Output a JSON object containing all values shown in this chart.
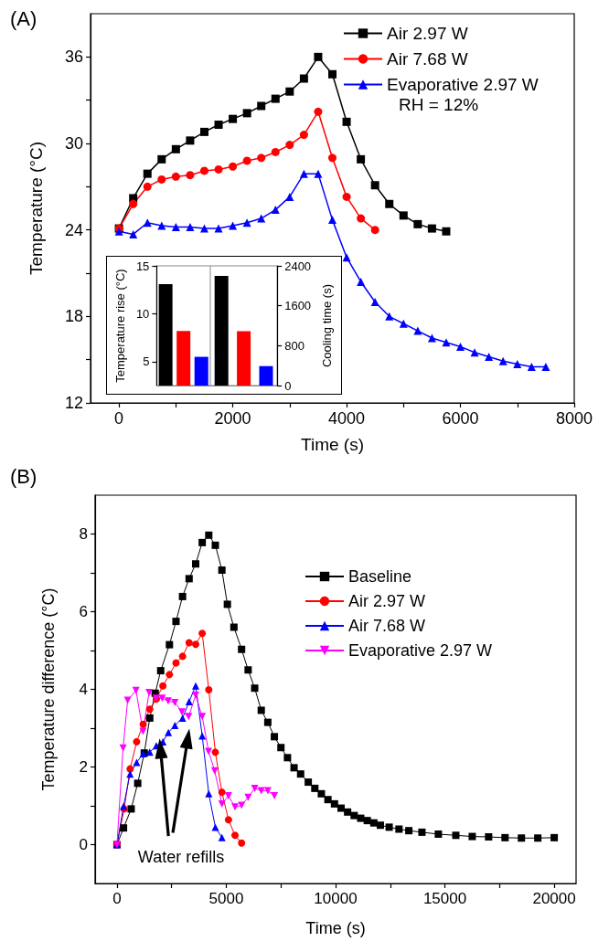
{
  "chart_data": [
    {
      "type": "line",
      "title": "(A)",
      "xlabel": "Time (s)",
      "ylabel": "Temperature (°C)",
      "xlim": [
        -500,
        8000
      ],
      "xticks": [
        0,
        {
          "value": 1000,
          "label": null
        },
        2000,
        {
          "value": 3000,
          "label": null
        },
        4000,
        {
          "value": 5000,
          "label": null
        },
        6000,
        {
          "value": 7000,
          "label": null
        },
        8000
      ],
      "ylim": [
        12,
        39
      ],
      "yticks": [
        12,
        {
          "value": 15,
          "label": null
        },
        18,
        {
          "value": 21,
          "label": null
        },
        24,
        {
          "value": 27,
          "label": null
        },
        30,
        {
          "value": 33,
          "label": null
        },
        36
      ],
      "legend": "top right",
      "annotations": [
        "RH = 12%"
      ],
      "series": [
        {
          "name": "Air 2.97 W",
          "color": "#000000",
          "marker": "square",
          "x": [
            0,
            250,
            500,
            750,
            1000,
            1250,
            1500,
            1750,
            2000,
            2250,
            2500,
            2750,
            3000,
            3250,
            3500,
            3750,
            4000,
            4250,
            4500,
            4750,
            5000,
            5250,
            5500,
            5750
          ],
          "values": [
            24.1,
            26.2,
            27.9,
            28.9,
            29.6,
            30.2,
            30.8,
            31.3,
            31.7,
            32.1,
            32.6,
            33.1,
            33.6,
            34.5,
            36.0,
            34.8,
            31.5,
            28.9,
            27.1,
            25.8,
            25.0,
            24.4,
            24.1,
            23.9
          ]
        },
        {
          "name": "Air 7.68 W",
          "color": "#ff0000",
          "marker": "circle",
          "x": [
            0,
            250,
            500,
            750,
            1000,
            1250,
            1500,
            1750,
            2000,
            2250,
            2500,
            2750,
            3000,
            3250,
            3500,
            3750,
            4000,
            4250,
            4500
          ],
          "values": [
            24.1,
            25.8,
            27.0,
            27.5,
            27.7,
            27.8,
            28.1,
            28.2,
            28.4,
            28.8,
            29.0,
            29.4,
            29.9,
            30.6,
            32.2,
            29.0,
            26.3,
            24.8,
            24.0
          ]
        },
        {
          "name": "Evaporative 2.97 W",
          "color": "#0000ff",
          "marker": "triangle",
          "x": [
            0,
            250,
            500,
            750,
            1000,
            1250,
            1500,
            1750,
            2000,
            2250,
            2500,
            2750,
            3000,
            3250,
            3500,
            3750,
            4000,
            4250,
            4500,
            4750,
            5000,
            5250,
            5500,
            5750,
            6000,
            6250,
            6500,
            6750,
            7000,
            7250,
            7500
          ],
          "values": [
            23.9,
            23.7,
            24.5,
            24.3,
            24.2,
            24.2,
            24.1,
            24.1,
            24.3,
            24.5,
            24.8,
            25.4,
            26.3,
            27.9,
            27.9,
            24.7,
            22.1,
            20.4,
            19.0,
            18.0,
            17.5,
            17.0,
            16.5,
            16.2,
            15.9,
            15.5,
            15.2,
            14.9,
            14.7,
            14.5,
            14.5
          ]
        }
      ]
    },
    {
      "type": "bar",
      "ylabel": "Temperature rise (°C)",
      "categories": [
        null,
        null,
        null
      ],
      "values": [
        13.1,
        8.2,
        5.5
      ],
      "colors": [
        "#000000",
        "#ff0000",
        "#0000ff"
      ],
      "ylim": [
        2.5,
        15
      ],
      "yticks": [
        5,
        10,
        15
      ]
    },
    {
      "type": "bar",
      "ylabel": "Cooling time (s)",
      "categories": [
        null,
        null,
        null
      ],
      "values": [
        2200,
        1090,
        390
      ],
      "colors": [
        "#000000",
        "#ff0000",
        "#0000ff"
      ],
      "ylim": [
        0,
        2400
      ],
      "yticks": [
        0,
        800,
        1600,
        2400
      ]
    },
    {
      "type": "line",
      "title": "(B)",
      "xlabel": "Time (s)",
      "ylabel": "Temperature difference (°C)",
      "xlim": [
        -1000,
        21000
      ],
      "xticks": [
        0,
        {
          "value": 2500,
          "label": null
        },
        5000,
        {
          "value": 7500,
          "label": null
        },
        10000,
        {
          "value": 12500,
          "label": null
        },
        15000,
        {
          "value": 17500,
          "label": null
        },
        20000
      ],
      "ylim": [
        -1,
        9
      ],
      "yticks": [
        0,
        {
          "value": 1,
          "label": null
        },
        2,
        {
          "value": 3,
          "label": null
        },
        4,
        {
          "value": 5,
          "label": null
        },
        6,
        {
          "value": 7,
          "label": null
        },
        8
      ],
      "legend": "right",
      "annotations": [
        "Water refills"
      ],
      "series": [
        {
          "name": "Baseline",
          "color": "#000000",
          "marker": "square",
          "x": [
            0,
            300,
            650,
            950,
            1250,
            1500,
            1750,
            2000,
            2400,
            2700,
            3000,
            3300,
            3600,
            3900,
            4200,
            4500,
            4800,
            5050,
            5350,
            5700,
            6000,
            6300,
            6600,
            6900,
            7200,
            7500,
            7800,
            8100,
            8400,
            8750,
            9050,
            9350,
            9650,
            9950,
            10250,
            10550,
            10850,
            11150,
            11450,
            11750,
            12050,
            12450,
            12900,
            13350,
            13950,
            14700,
            15500,
            16250,
            17000,
            17750,
            18500,
            19250,
            20000
          ],
          "values": [
            0,
            0.43,
            0.92,
            1.58,
            2.36,
            3.26,
            3.9,
            4.48,
            5.15,
            5.75,
            6.39,
            6.85,
            7.23,
            7.78,
            7.97,
            7.71,
            7.07,
            6.19,
            5.6,
            5.03,
            4.5,
            4.03,
            3.46,
            3.15,
            2.78,
            2.5,
            2.24,
            1.98,
            1.82,
            1.61,
            1.45,
            1.31,
            1.16,
            1.05,
            0.94,
            0.84,
            0.75,
            0.68,
            0.62,
            0.56,
            0.5,
            0.45,
            0.4,
            0.36,
            0.32,
            0.27,
            0.24,
            0.21,
            0.2,
            0.18,
            0.17,
            0.17,
            0.18
          ]
        },
        {
          "name": "Air 2.97 W",
          "color": "#ff0000",
          "marker": "circle",
          "x": [
            0,
            330,
            600,
            900,
            1200,
            1500,
            1800,
            2100,
            2400,
            2700,
            3000,
            3300,
            3600,
            3900,
            4200,
            4500,
            4800,
            5100,
            5400,
            5700
          ],
          "values": [
            0,
            0.92,
            1.95,
            2.65,
            3.1,
            3.49,
            3.75,
            4.09,
            4.38,
            4.68,
            4.85,
            5.2,
            5.16,
            5.44,
            3.99,
            2.38,
            1.35,
            0.64,
            0.24,
            0.04
          ]
        },
        {
          "name": "Air 7.68 W",
          "color": "#0000ff",
          "marker": "triangle",
          "x": [
            0,
            300,
            600,
            900,
            1200,
            1500,
            1800,
            2100,
            2350,
            2650,
            3000,
            3300,
            3600,
            3900,
            4200,
            4500,
            4800
          ],
          "values": [
            0,
            0.99,
            1.82,
            2.12,
            2.34,
            2.38,
            2.55,
            2.65,
            2.89,
            3.07,
            3.26,
            3.68,
            4.09,
            2.8,
            1.31,
            0.45,
            0.18
          ]
        },
        {
          "name": "Evaporative 2.97 W",
          "color": "#ff00ff",
          "marker": "triangle-down",
          "x": [
            0,
            280,
            490,
            870,
            1190,
            1470,
            1790,
            2070,
            2340,
            2650,
            2970,
            3280,
            3600,
            3900,
            4190,
            4470,
            4800,
            5100,
            5400,
            5700,
            6000,
            6300,
            6600,
            6900,
            7200
          ],
          "values": [
            0,
            2.49,
            3.72,
            3.97,
            2.92,
            3.92,
            3.77,
            3.77,
            3.7,
            3.66,
            3.42,
            3.3,
            3.85,
            3.3,
            2.4,
            1.9,
            1.05,
            1.26,
            0.97,
            1.01,
            1.22,
            1.45,
            1.39,
            1.39,
            1.26
          ]
        }
      ]
    }
  ]
}
